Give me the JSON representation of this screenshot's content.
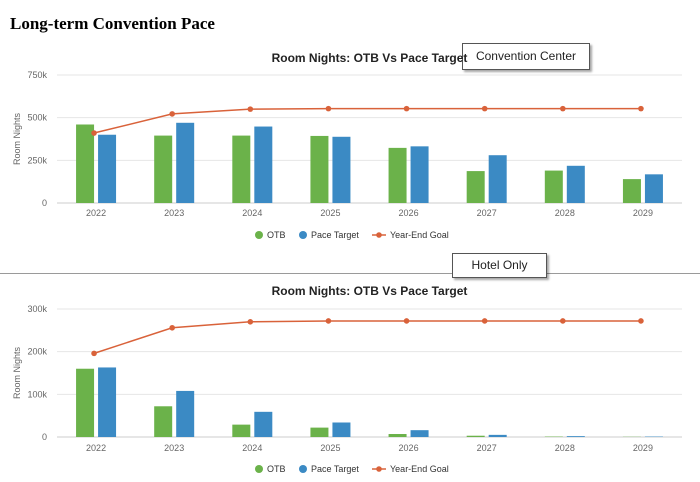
{
  "page": {
    "title": "Long-term Convention Pace"
  },
  "colors": {
    "otb": "#6bb24a",
    "pace_target": "#3b8ac4",
    "goal": "#d9623a",
    "grid": "#e6e6e6",
    "axis": "#cccccc"
  },
  "chart_data": [
    {
      "type": "bar",
      "panel_label": "Convention Center",
      "title": "Room Nights: OTB Vs Pace Target",
      "xlabel": "",
      "ylabel": "Room Nights",
      "ylim": [
        0,
        750000
      ],
      "yticks": [
        0,
        250000,
        500000,
        750000
      ],
      "ytick_labels": [
        "0",
        "250k",
        "500k",
        "750k"
      ],
      "categories": [
        "2022",
        "2023",
        "2024",
        "2025",
        "2026",
        "2027",
        "2028",
        "2029"
      ],
      "series": [
        {
          "name": "OTB",
          "kind": "bar",
          "values": [
            460000,
            395000,
            395000,
            393000,
            323000,
            187000,
            190000,
            140000
          ]
        },
        {
          "name": "Pace Target",
          "kind": "bar",
          "values": [
            400000,
            470000,
            448000,
            388000,
            332000,
            280000,
            218000,
            168000
          ]
        },
        {
          "name": "Year-End Goal",
          "kind": "line",
          "values": [
            410000,
            522000,
            550000,
            553000,
            553000,
            553000,
            553000,
            553000
          ]
        }
      ],
      "grid": true,
      "legend": "bottom-center"
    },
    {
      "type": "bar",
      "panel_label": "Hotel Only",
      "title": "Room Nights: OTB Vs Pace Target",
      "xlabel": "",
      "ylabel": "Room Nights",
      "ylim": [
        0,
        300000
      ],
      "yticks": [
        0,
        100000,
        200000,
        300000
      ],
      "ytick_labels": [
        "0",
        "100k",
        "200k",
        "300k"
      ],
      "categories": [
        "2022",
        "2023",
        "2024",
        "2025",
        "2026",
        "2027",
        "2028",
        "2029"
      ],
      "series": [
        {
          "name": "OTB",
          "kind": "bar",
          "values": [
            160000,
            72000,
            29000,
            22000,
            7000,
            3000,
            1000,
            500
          ]
        },
        {
          "name": "Pace Target",
          "kind": "bar",
          "values": [
            163000,
            108000,
            59000,
            34000,
            16000,
            5000,
            2000,
            1000
          ]
        },
        {
          "name": "Year-End Goal",
          "kind": "line",
          "values": [
            196000,
            256000,
            270000,
            272000,
            272000,
            272000,
            272000,
            272000
          ]
        }
      ],
      "grid": true,
      "legend": "bottom-center"
    }
  ]
}
